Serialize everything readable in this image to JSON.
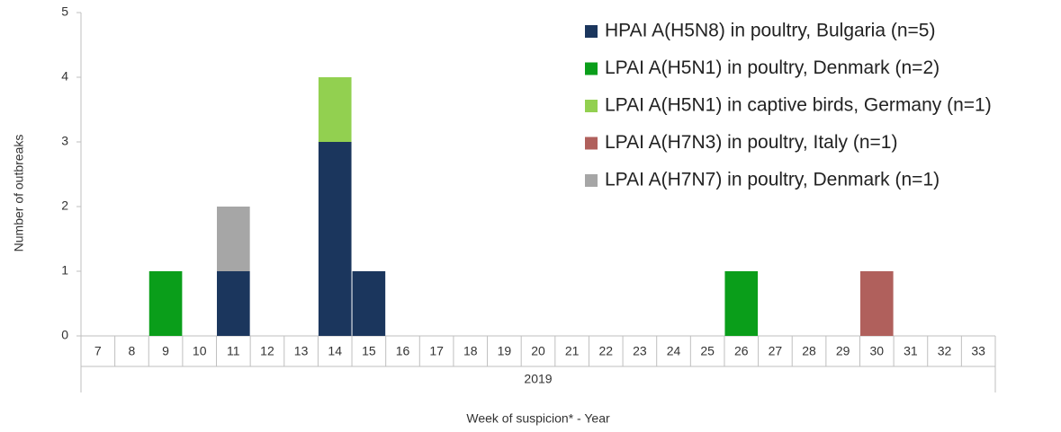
{
  "chart_data": {
    "type": "stacked_bar",
    "y_label": "Number of outbreaks",
    "x_label": "Week of suspicion* - Year",
    "group_label": "2019",
    "categories": [
      "7",
      "8",
      "9",
      "10",
      "11",
      "12",
      "13",
      "14",
      "15",
      "16",
      "17",
      "18",
      "19",
      "20",
      "21",
      "22",
      "23",
      "24",
      "25",
      "26",
      "27",
      "28",
      "29",
      "30",
      "31",
      "32",
      "33"
    ],
    "series": [
      {
        "name": "HPAI A(H5N8) in poultry, Bulgaria (n=5)",
        "color": "#1b365d",
        "values": [
          0,
          0,
          0,
          0,
          1,
          0,
          0,
          3,
          1,
          0,
          0,
          0,
          0,
          0,
          0,
          0,
          0,
          0,
          0,
          0,
          0,
          0,
          0,
          0,
          0,
          0,
          0
        ]
      },
      {
        "name": "LPAI A(H5N1) in poultry, Denmark (n=2)",
        "color": "#0a9e1a",
        "values": [
          0,
          0,
          1,
          0,
          0,
          0,
          0,
          0,
          0,
          0,
          0,
          0,
          0,
          0,
          0,
          0,
          0,
          0,
          0,
          1,
          0,
          0,
          0,
          0,
          0,
          0,
          0
        ]
      },
      {
        "name": "LPAI A(H5N1) in captive birds, Germany (n=1)",
        "color": "#92d050",
        "values": [
          0,
          0,
          0,
          0,
          0,
          0,
          0,
          1,
          0,
          0,
          0,
          0,
          0,
          0,
          0,
          0,
          0,
          0,
          0,
          0,
          0,
          0,
          0,
          0,
          0,
          0,
          0
        ]
      },
      {
        "name": "LPAI A(H7N3) in poultry, Italy (n=1)",
        "color": "#b0605c",
        "values": [
          0,
          0,
          0,
          0,
          0,
          0,
          0,
          0,
          0,
          0,
          0,
          0,
          0,
          0,
          0,
          0,
          0,
          0,
          0,
          0,
          0,
          0,
          0,
          1,
          0,
          0,
          0
        ]
      },
      {
        "name": "LPAI A(H7N7) in poultry, Denmark (n=1)",
        "color": "#a6a6a6",
        "values": [
          0,
          0,
          0,
          0,
          1,
          0,
          0,
          0,
          0,
          0,
          0,
          0,
          0,
          0,
          0,
          0,
          0,
          0,
          0,
          0,
          0,
          0,
          0,
          0,
          0,
          0,
          0
        ]
      }
    ],
    "ylim": [
      0,
      5
    ],
    "yticks": [
      0,
      1,
      2,
      3,
      4,
      5
    ],
    "legend": "top-right"
  }
}
